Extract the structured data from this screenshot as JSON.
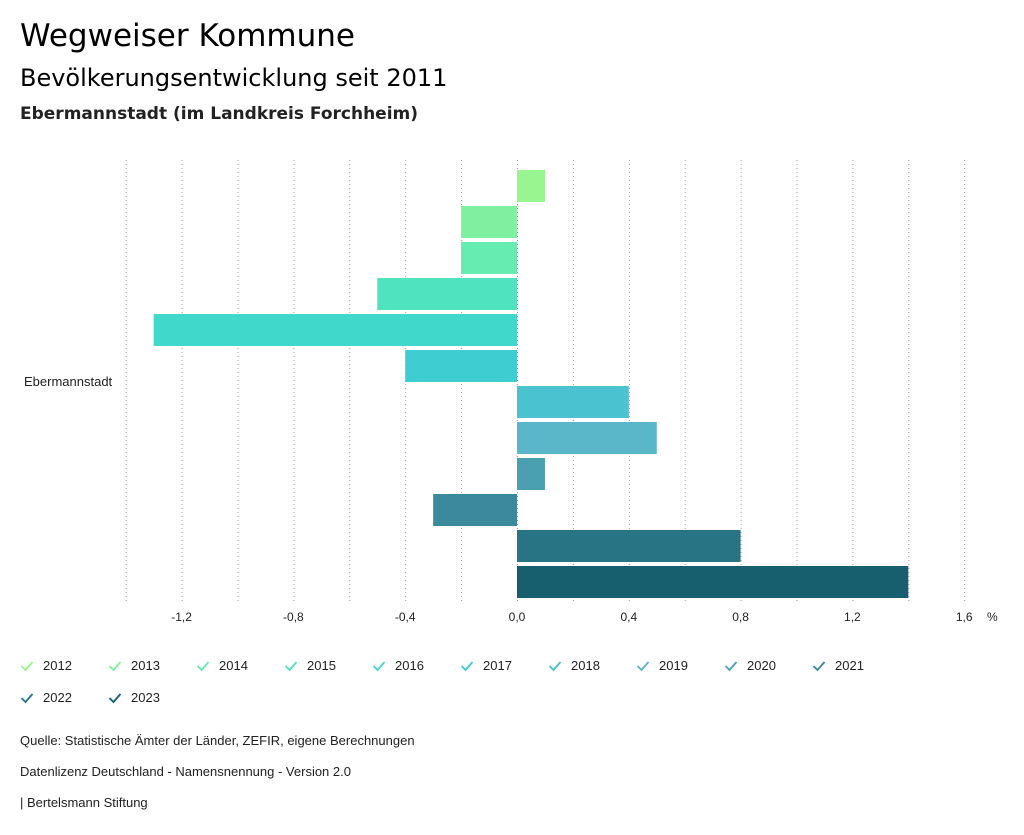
{
  "header": {
    "title": "Wegweiser Kommune",
    "subtitle": "Bevölkerungsentwicklung seit 2011",
    "region": "Ebermannstadt (im Landkreis Forchheim)"
  },
  "chart_data": {
    "type": "bar",
    "orientation": "horizontal",
    "category": "Ebermannstadt",
    "unit": "%",
    "xlim": [
      -1.4,
      1.6
    ],
    "ticks": [
      -1.2,
      -0.8,
      -0.4,
      0.0,
      0.4,
      0.8,
      1.2,
      1.6
    ],
    "tick_labels": [
      "-1,2",
      "-0,8",
      "-0,4",
      "0,0",
      "0,4",
      "0,8",
      "1,2",
      "1,6"
    ],
    "series": [
      {
        "name": "2012",
        "value": 0.1,
        "color": "#98f58f"
      },
      {
        "name": "2013",
        "value": -0.2,
        "color": "#7ef0a0"
      },
      {
        "name": "2014",
        "value": -0.2,
        "color": "#66ebb0"
      },
      {
        "name": "2015",
        "value": -0.5,
        "color": "#50e3c0"
      },
      {
        "name": "2016",
        "value": -1.3,
        "color": "#40d8cb"
      },
      {
        "name": "2017",
        "value": -0.4,
        "color": "#3ecdd0"
      },
      {
        "name": "2018",
        "value": 0.4,
        "color": "#4bc2cf"
      },
      {
        "name": "2019",
        "value": 0.5,
        "color": "#5ab6c9"
      },
      {
        "name": "2020",
        "value": 0.1,
        "color": "#4aa0b1"
      },
      {
        "name": "2021",
        "value": -0.3,
        "color": "#3a899c"
      },
      {
        "name": "2022",
        "value": 0.8,
        "color": "#287485"
      },
      {
        "name": "2023",
        "value": 1.4,
        "color": "#175e6e"
      }
    ]
  },
  "footer": {
    "source": "Quelle: Statistische Ämter der Länder, ZEFIR, eigene Berechnungen",
    "license": "Datenlizenz Deutschland - Namensnennung - Version 2.0",
    "publisher": "| Bertelsmann Stiftung"
  }
}
